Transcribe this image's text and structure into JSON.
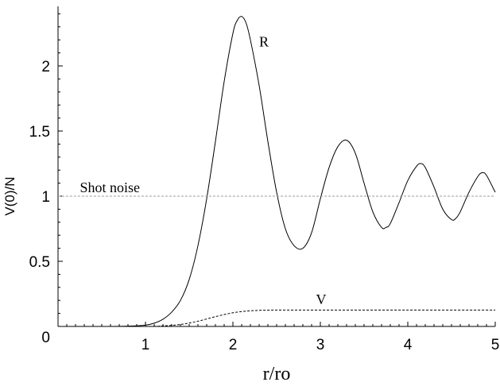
{
  "chart_data": {
    "type": "line",
    "xlabel": "r/ro",
    "ylabel": "V(0)/N",
    "xlim": [
      0,
      5
    ],
    "ylim": [
      0,
      2.45
    ],
    "x_ticks": [
      "1",
      "2",
      "3",
      "4",
      "5"
    ],
    "y_ticks": [
      "0",
      "0.5",
      "1",
      "1.5",
      "2"
    ],
    "grid": false,
    "series": [
      {
        "name": "R",
        "style": "solid",
        "color": "#000000",
        "x": [
          0,
          0.6,
          0.8,
          1.0,
          1.1,
          1.2,
          1.3,
          1.4,
          1.5,
          1.6,
          1.7,
          1.8,
          1.9,
          2.0,
          2.05,
          2.1,
          2.15,
          2.2,
          2.3,
          2.4,
          2.5,
          2.6,
          2.7,
          2.8,
          2.9,
          3.0,
          3.1,
          3.2,
          3.3,
          3.4,
          3.5,
          3.6,
          3.7,
          3.75,
          3.8,
          3.9,
          4.0,
          4.1,
          4.15,
          4.2,
          4.3,
          4.4,
          4.5,
          4.55,
          4.6,
          4.7,
          4.8,
          4.85,
          4.9,
          5.0
        ],
        "y": [
          0,
          0,
          0.002,
          0.01,
          0.025,
          0.055,
          0.11,
          0.2,
          0.36,
          0.62,
          0.98,
          1.42,
          1.88,
          2.25,
          2.35,
          2.38,
          2.33,
          2.2,
          1.85,
          1.42,
          1.03,
          0.75,
          0.62,
          0.6,
          0.72,
          0.98,
          1.22,
          1.38,
          1.43,
          1.33,
          1.1,
          0.88,
          0.76,
          0.76,
          0.79,
          0.95,
          1.12,
          1.23,
          1.25,
          1.22,
          1.07,
          0.9,
          0.82,
          0.83,
          0.88,
          1.03,
          1.15,
          1.18,
          1.16,
          1.03
        ]
      },
      {
        "name": "V",
        "style": "dashed",
        "color": "#000000",
        "x": [
          0,
          1.0,
          1.2,
          1.4,
          1.6,
          1.8,
          2.0,
          2.2,
          2.4,
          2.6,
          3.0,
          4.0,
          5.0
        ],
        "y": [
          0,
          0,
          0.004,
          0.015,
          0.04,
          0.075,
          0.105,
          0.12,
          0.125,
          0.126,
          0.126,
          0.126,
          0.126
        ]
      },
      {
        "name": "Shot noise",
        "style": "dotted-gray",
        "color": "#9a9a9a",
        "x": [
          0,
          5
        ],
        "y": [
          1,
          1
        ]
      }
    ],
    "annotations": [
      {
        "text": "R",
        "x": 2.3,
        "y": 2.15
      },
      {
        "text": "V",
        "x": 2.95,
        "y": 0.17
      },
      {
        "text": "Shot noise",
        "x": 0.25,
        "y": 1.03
      }
    ]
  }
}
